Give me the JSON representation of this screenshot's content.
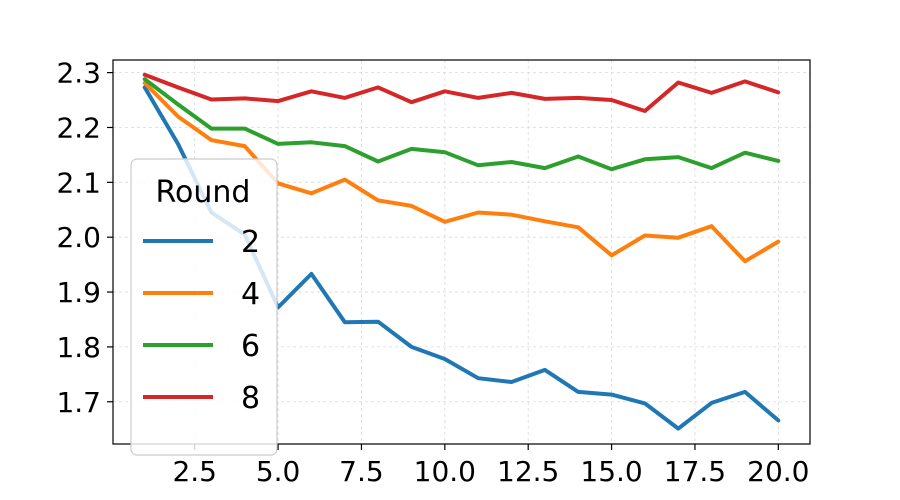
{
  "chart_data": {
    "type": "line",
    "title": "",
    "xlabel": "",
    "ylabel": "",
    "xlim": [
      0.05,
      20.95
    ],
    "ylim": [
      1.623,
      2.323
    ],
    "xticks": [
      2.5,
      5.0,
      7.5,
      10.0,
      12.5,
      15.0,
      17.5,
      20.0
    ],
    "xtick_labels": [
      "2.5",
      "5.0",
      "7.5",
      "10.0",
      "12.5",
      "15.0",
      "17.5",
      "20.0"
    ],
    "yticks": [
      1.7,
      1.8,
      1.9,
      2.0,
      2.1,
      2.2,
      2.3
    ],
    "ytick_labels": [
      "1.7",
      "1.8",
      "1.9",
      "2.0",
      "2.1",
      "2.2",
      "2.3"
    ],
    "grid": true,
    "legend": {
      "title": "Round",
      "placement": "lower-left"
    },
    "x": [
      1,
      2,
      3,
      4,
      5,
      6,
      7,
      8,
      9,
      10,
      11,
      12,
      13,
      14,
      15,
      16,
      17,
      18,
      19,
      20
    ],
    "series": [
      {
        "name": "2",
        "color": "#1f77b4",
        "values": [
          2.273,
          2.17,
          2.045,
          2.005,
          1.872,
          1.933,
          1.845,
          1.846,
          1.8,
          1.778,
          1.743,
          1.736,
          1.758,
          1.718,
          1.713,
          1.697,
          1.651,
          1.698,
          1.718,
          1.666
        ]
      },
      {
        "name": "4",
        "color": "#ff7f0e",
        "values": [
          2.281,
          2.22,
          2.177,
          2.166,
          2.098,
          2.08,
          2.105,
          2.067,
          2.057,
          2.028,
          2.045,
          2.041,
          2.029,
          2.018,
          1.967,
          2.003,
          1.999,
          2.02,
          1.956,
          1.992
        ]
      },
      {
        "name": "6",
        "color": "#2ca02c",
        "values": [
          2.288,
          2.242,
          2.198,
          2.198,
          2.17,
          2.173,
          2.166,
          2.138,
          2.161,
          2.155,
          2.131,
          2.137,
          2.126,
          2.147,
          2.124,
          2.142,
          2.146,
          2.126,
          2.154,
          2.139
        ]
      },
      {
        "name": "8",
        "color": "#d62728",
        "values": [
          2.296,
          2.273,
          2.251,
          2.253,
          2.248,
          2.266,
          2.254,
          2.273,
          2.246,
          2.266,
          2.254,
          2.263,
          2.252,
          2.254,
          2.25,
          2.23,
          2.282,
          2.263,
          2.284,
          2.264
        ]
      }
    ]
  }
}
